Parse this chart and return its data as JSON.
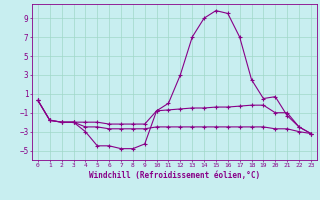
{
  "xlabel": "Windchill (Refroidissement éolien,°C)",
  "background_color": "#c8eef0",
  "grid_color": "#a0d8c8",
  "line_color": "#880088",
  "xlim": [
    -0.5,
    23.5
  ],
  "ylim": [
    -6,
    10.5
  ],
  "yticks": [
    -5,
    -3,
    -1,
    1,
    3,
    5,
    7,
    9
  ],
  "xticks": [
    0,
    1,
    2,
    3,
    4,
    5,
    6,
    7,
    8,
    9,
    10,
    11,
    12,
    13,
    14,
    15,
    16,
    17,
    18,
    19,
    20,
    21,
    22,
    23
  ],
  "line1_x": [
    0,
    1,
    2,
    3,
    4,
    5,
    6,
    7,
    8,
    9,
    10,
    11,
    12,
    13,
    14,
    15,
    16,
    17,
    18,
    19,
    20,
    21,
    22,
    23
  ],
  "line1_y": [
    0.3,
    -1.8,
    -2.0,
    -2.0,
    -3.0,
    -4.5,
    -4.5,
    -4.8,
    -4.8,
    -4.3,
    -0.8,
    0.0,
    3.0,
    7.0,
    9.0,
    9.8,
    9.5,
    7.0,
    2.5,
    0.5,
    0.7,
    -1.3,
    -2.5,
    -3.2
  ],
  "line2_x": [
    0,
    1,
    2,
    3,
    4,
    5,
    6,
    7,
    8,
    9,
    10,
    11,
    12,
    13,
    14,
    15,
    16,
    17,
    18,
    19,
    20,
    21,
    22,
    23
  ],
  "line2_y": [
    0.3,
    -1.8,
    -2.0,
    -2.0,
    -2.0,
    -2.0,
    -2.2,
    -2.2,
    -2.2,
    -2.2,
    -0.8,
    -0.7,
    -0.6,
    -0.5,
    -0.5,
    -0.4,
    -0.4,
    -0.3,
    -0.2,
    -0.2,
    -1.0,
    -1.0,
    -2.5,
    -3.2
  ],
  "line3_x": [
    0,
    1,
    2,
    3,
    4,
    5,
    6,
    7,
    8,
    9,
    10,
    11,
    12,
    13,
    14,
    15,
    16,
    17,
    18,
    19,
    20,
    21,
    22,
    23
  ],
  "line3_y": [
    0.3,
    -1.8,
    -2.0,
    -2.0,
    -2.5,
    -2.5,
    -2.7,
    -2.7,
    -2.7,
    -2.7,
    -2.5,
    -2.5,
    -2.5,
    -2.5,
    -2.5,
    -2.5,
    -2.5,
    -2.5,
    -2.5,
    -2.5,
    -2.7,
    -2.7,
    -3.0,
    -3.2
  ]
}
